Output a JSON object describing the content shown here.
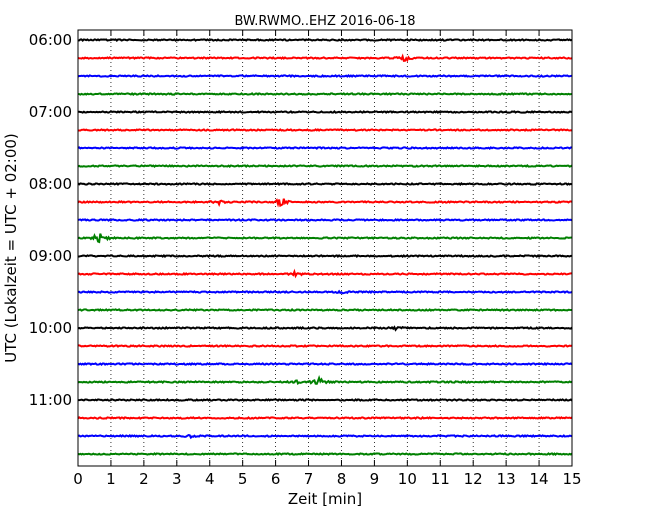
{
  "chart_data": {
    "type": "line",
    "title": "BW.RWMO..EHZ 2016-06-18",
    "xlabel": "Zeit  [min]",
    "ylabel": "UTC (Lokalzeit = UTC + 02:00)",
    "xlim": [
      0,
      15
    ],
    "x_ticks": [
      0,
      1,
      2,
      3,
      4,
      5,
      6,
      7,
      8,
      9,
      10,
      11,
      12,
      13,
      14,
      15
    ],
    "x_grid": "dotted",
    "y_tick_labels": [
      "06:00",
      "07:00",
      "08:00",
      "09:00",
      "10:00",
      "11:00"
    ],
    "trace_start_minutes_utc": [
      360,
      375,
      390,
      405,
      420,
      435,
      450,
      465,
      480,
      495,
      510,
      525,
      540,
      555,
      570,
      585,
      600,
      615,
      630,
      645,
      660,
      675,
      690,
      705
    ],
    "trace_duration_min": 15,
    "colors": [
      "#000000",
      "#ff0000",
      "#0000ff",
      "#008000"
    ],
    "events": [
      {
        "trace": 1,
        "x": 9.9,
        "amplitude": 0.3
      },
      {
        "trace": 9,
        "x": 4.3,
        "amplitude": 0.2
      },
      {
        "trace": 9,
        "x": 6.2,
        "amplitude": 0.45
      },
      {
        "trace": 11,
        "x": 0.65,
        "amplitude": 0.5
      },
      {
        "trace": 13,
        "x": 6.6,
        "amplitude": 0.15
      },
      {
        "trace": 14,
        "x": 8.1,
        "amplitude": 0.15
      },
      {
        "trace": 16,
        "x": 9.7,
        "amplitude": 0.2
      },
      {
        "trace": 19,
        "x": 6.7,
        "amplitude": 0.2
      },
      {
        "trace": 19,
        "x": 7.3,
        "amplitude": 0.35
      },
      {
        "trace": 22,
        "x": 3.4,
        "amplitude": 0.12
      }
    ]
  }
}
